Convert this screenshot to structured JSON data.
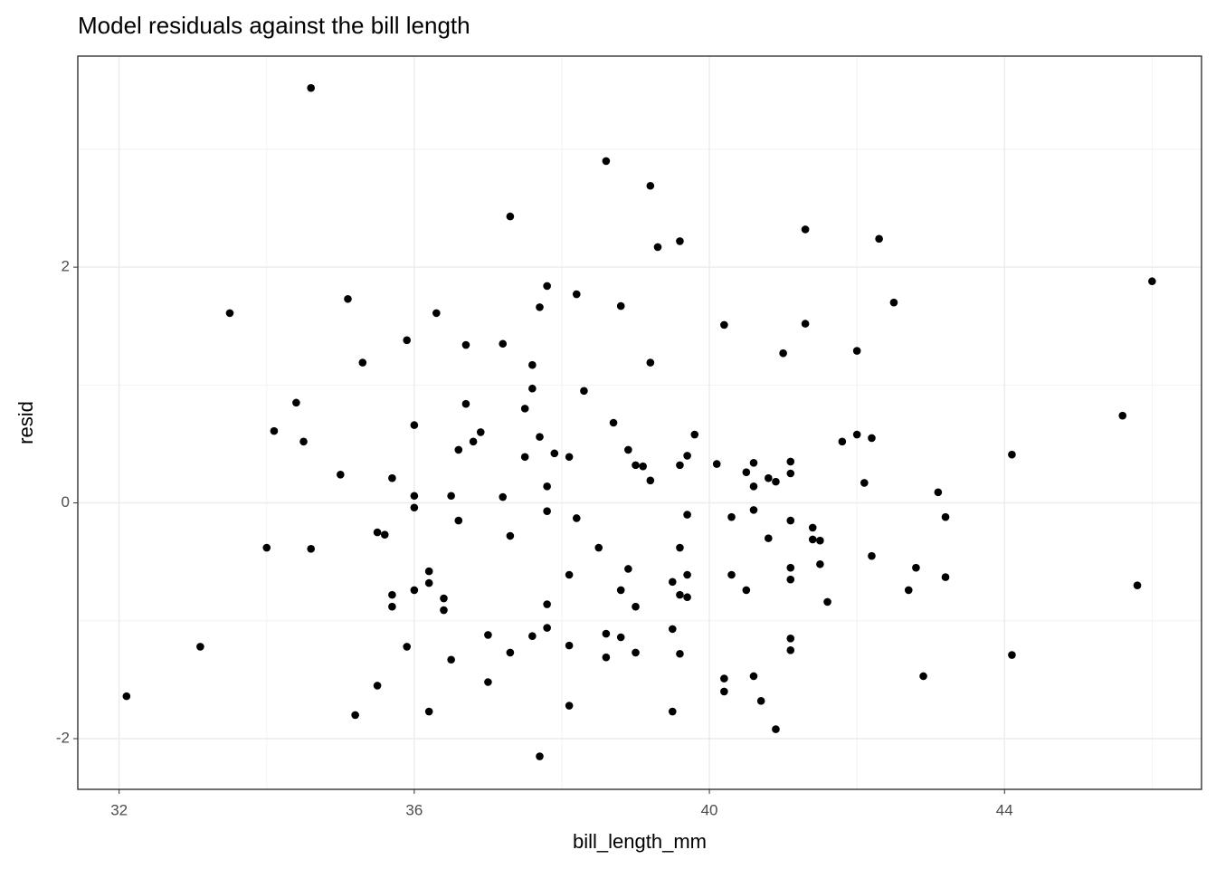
{
  "chart_data": {
    "type": "scatter",
    "title": "Model residuals against the bill length",
    "x_label": "bill_length_mm",
    "y_label": "resid",
    "xlim": [
      31.44,
      46.67
    ],
    "ylim": [
      -2.43,
      3.79
    ],
    "xticks": [
      32,
      36,
      40,
      44
    ],
    "yticks": [
      -2,
      0,
      2
    ],
    "x_minor_ticks": [
      34,
      38,
      42,
      46
    ],
    "y_minor_ticks": [
      -1,
      1,
      3
    ],
    "grid": true,
    "color": "#000000",
    "x": [
      32.1,
      33.1,
      33.5,
      34.0,
      34.1,
      34.4,
      34.5,
      34.6,
      34.6,
      35.0,
      35.1,
      35.2,
      35.3,
      35.5,
      35.5,
      35.6,
      35.7,
      35.7,
      35.7,
      35.9,
      35.9,
      36.0,
      36.0,
      36.0,
      36.0,
      36.2,
      36.2,
      36.2,
      36.3,
      36.4,
      36.4,
      36.5,
      36.5,
      36.6,
      36.6,
      36.7,
      36.7,
      36.8,
      36.9,
      37.0,
      37.0,
      37.2,
      37.2,
      37.3,
      37.3,
      37.3,
      37.5,
      37.5,
      37.6,
      37.6,
      37.6,
      37.7,
      37.7,
      37.7,
      37.8,
      37.8,
      37.8,
      37.8,
      37.8,
      37.9,
      38.1,
      38.1,
      38.1,
      38.1,
      38.2,
      38.2,
      38.3,
      38.5,
      38.6,
      38.6,
      38.6,
      38.7,
      38.8,
      38.8,
      38.8,
      38.9,
      38.9,
      39.0,
      39.0,
      39.0,
      39.1,
      39.2,
      39.2,
      39.2,
      39.3,
      39.5,
      39.5,
      39.5,
      39.6,
      39.6,
      39.6,
      39.6,
      39.6,
      39.7,
      39.7,
      39.7,
      39.7,
      39.8,
      40.1,
      40.2,
      40.2,
      40.2,
      40.3,
      40.3,
      40.5,
      40.5,
      40.6,
      40.6,
      40.6,
      40.6,
      40.7,
      40.8,
      40.8,
      40.9,
      40.9,
      41.0,
      41.1,
      41.1,
      41.1,
      41.1,
      41.1,
      41.1,
      41.1,
      41.3,
      41.3,
      41.4,
      41.4,
      41.5,
      41.5,
      41.6,
      41.8,
      42.0,
      42.0,
      42.1,
      42.2,
      42.2,
      42.3,
      42.5,
      42.7,
      42.8,
      42.9,
      43.1,
      43.2,
      43.2,
      44.1,
      44.1,
      45.6,
      45.8,
      46.0
    ],
    "values": [
      -1.64,
      -1.22,
      1.61,
      -0.38,
      0.61,
      0.85,
      0.52,
      3.52,
      -0.39,
      0.24,
      1.73,
      -1.8,
      1.19,
      -0.25,
      -1.55,
      -0.27,
      0.21,
      -0.78,
      -0.88,
      1.38,
      -1.22,
      0.66,
      0.06,
      -0.04,
      -0.74,
      -0.58,
      -0.68,
      -1.77,
      1.61,
      -0.81,
      -0.91,
      0.06,
      -1.33,
      0.45,
      -0.15,
      1.34,
      0.84,
      0.52,
      0.6,
      -1.12,
      -1.52,
      1.35,
      0.05,
      2.43,
      -0.28,
      -1.27,
      0.8,
      0.39,
      1.17,
      0.97,
      -1.13,
      1.66,
      0.56,
      -2.15,
      1.84,
      0.14,
      -0.07,
      -0.86,
      -1.06,
      0.42,
      0.39,
      -0.61,
      -1.21,
      -1.72,
      1.77,
      -0.13,
      0.95,
      -0.38,
      2.9,
      -1.11,
      -1.31,
      0.68,
      1.67,
      -0.74,
      -1.14,
      0.45,
      -0.56,
      0.32,
      -0.88,
      -1.27,
      0.31,
      2.69,
      1.19,
      0.19,
      2.17,
      -0.67,
      -1.07,
      -1.77,
      2.22,
      0.32,
      -0.38,
      -0.78,
      -1.28,
      0.4,
      -0.1,
      -0.61,
      -0.8,
      0.58,
      0.33,
      1.51,
      -1.49,
      -1.6,
      -0.12,
      -0.61,
      0.26,
      -0.74,
      0.34,
      0.14,
      -0.06,
      -1.47,
      -1.68,
      0.21,
      -0.3,
      0.18,
      -1.92,
      1.27,
      0.35,
      0.25,
      -0.15,
      -0.55,
      -0.65,
      -1.15,
      -1.25,
      2.32,
      1.52,
      -0.21,
      -0.31,
      -0.32,
      -0.52,
      -0.84,
      0.52,
      1.29,
      0.58,
      0.17,
      0.55,
      -0.45,
      2.24,
      1.7,
      -0.74,
      -0.55,
      -1.47,
      0.09,
      -0.12,
      -0.63,
      0.41,
      -1.29,
      0.74,
      -0.7,
      1.88
    ]
  }
}
